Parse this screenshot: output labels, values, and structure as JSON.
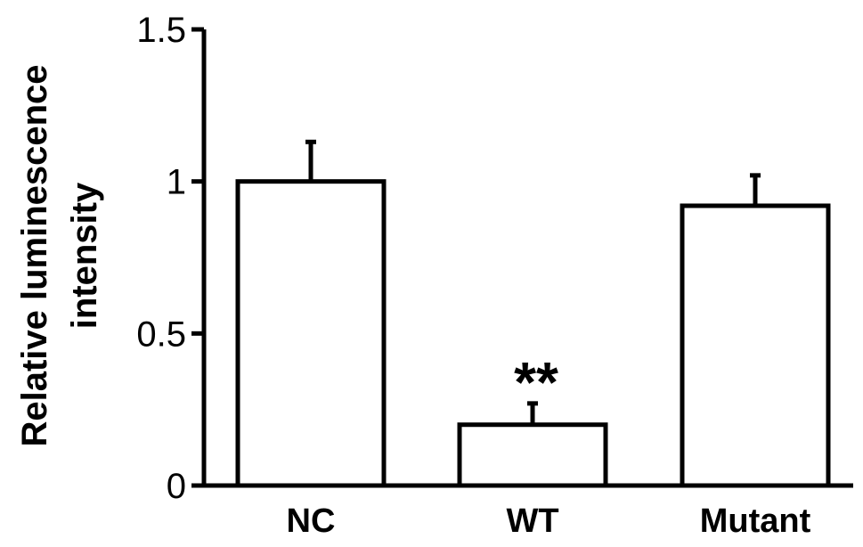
{
  "chart_data": {
    "type": "bar",
    "title": "",
    "xlabel": "",
    "ylabel_lines": [
      "Relative luminescence",
      "intensity"
    ],
    "categories": [
      "NC",
      "WT",
      "Mutant"
    ],
    "values": [
      1.0,
      0.2,
      0.92
    ],
    "error_upper": [
      0.13,
      0.07,
      0.1
    ],
    "ylim": [
      0,
      1.5
    ],
    "y_ticks": [
      0,
      0.5,
      1,
      1.5
    ],
    "y_tick_labels": [
      "0",
      "0.5",
      "1",
      "1.5"
    ],
    "annotations": [
      {
        "category": "WT",
        "text": "**"
      }
    ],
    "grid": false,
    "legend": "none",
    "bar_fill": "#ffffff",
    "bar_stroke": "#000000"
  }
}
